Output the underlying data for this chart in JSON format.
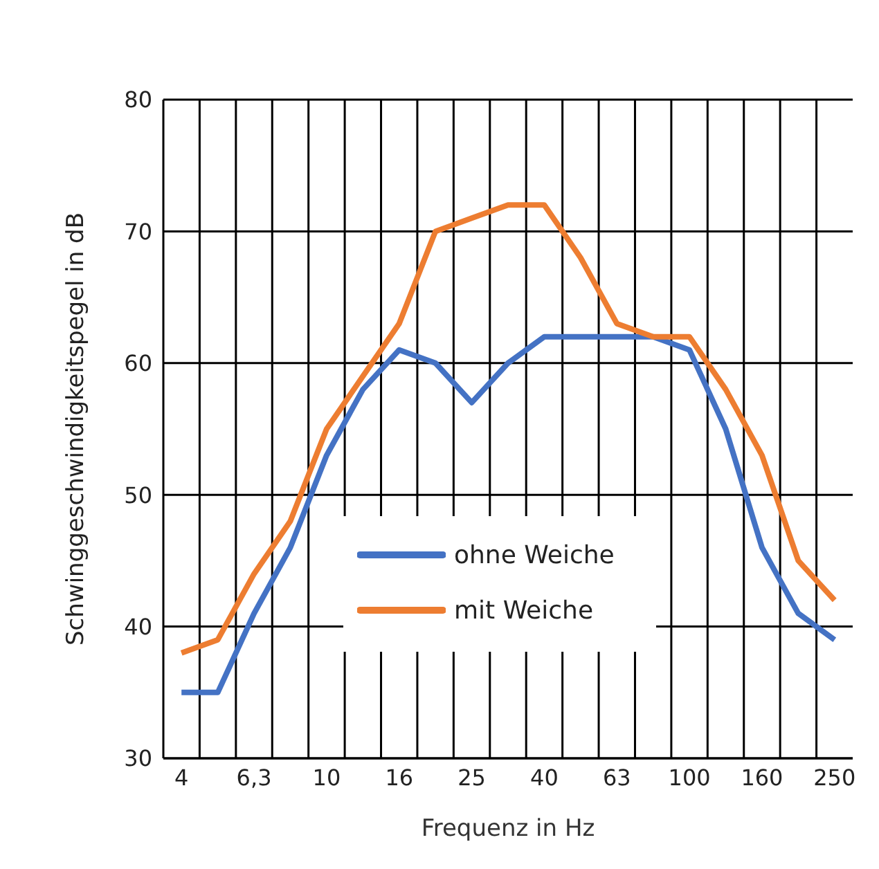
{
  "chart_data": {
    "type": "line",
    "xlabel": "Frequenz in Hz",
    "ylabel": "Schwinggeschwindigkeitspegel in dB",
    "categories": [
      "4",
      null,
      "6,3",
      null,
      "10",
      null,
      "16",
      null,
      "25",
      null,
      "40",
      null,
      "63",
      null,
      "100",
      null,
      "160",
      null,
      "250"
    ],
    "series": [
      {
        "name": "ohne Weiche",
        "color": "#4472c4",
        "values": [
          35,
          35,
          41,
          46,
          53,
          58,
          61,
          60,
          57,
          60,
          62,
          62,
          62,
          62,
          61,
          55,
          46,
          41,
          39
        ]
      },
      {
        "name": "mit Weiche",
        "color": "#ed7d31",
        "values": [
          38,
          39,
          44,
          48,
          55,
          59,
          63,
          70,
          71,
          72,
          72,
          68,
          63,
          62,
          62,
          58,
          53,
          45,
          42
        ]
      }
    ],
    "ylim": [
      30,
      80
    ],
    "yticks": [
      30,
      40,
      50,
      60,
      70,
      80
    ],
    "grid": true,
    "legend": "bottom",
    "marker": "none",
    "line_style": "solid"
  }
}
